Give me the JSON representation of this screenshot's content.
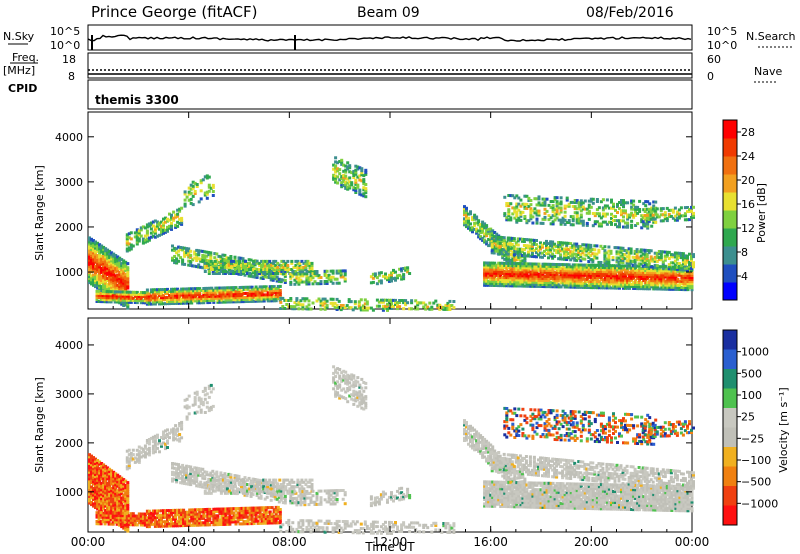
{
  "header": {
    "station": "Prince George (fitACF)",
    "beam": "Beam 09",
    "date": "08/Feb/2016"
  },
  "side_labels": {
    "nsky": "N.Sky",
    "nsearch": "N.Search",
    "freq_top": "Freq.",
    "freq_unit": "[MHz]",
    "cpid": "CPID",
    "nave": "Nave",
    "cpid_value": "themis 3300"
  },
  "small_ticks": {
    "nsky_top": "10^5",
    "nsky_bot": "10^0",
    "nsearch_top": "10^5",
    "nsearch_bot": "10^0",
    "freq_top": "18",
    "freq_bot": "8",
    "nave_top": "60",
    "nave_bot": "0"
  },
  "colors": {
    "power": [
      "#0000ff",
      "#1f4fbf",
      "#3c8f8f",
      "#2fa84f",
      "#7fd03f",
      "#e8e030",
      "#f2a020",
      "#f07010",
      "#f03a00",
      "#ff0000"
    ],
    "velocity": [
      "#1a2fa0",
      "#2a5fd0",
      "#1f8f6f",
      "#4fc24f",
      "#c8c8c0",
      "#c0c0b8",
      "#f0b020",
      "#f08010",
      "#f04010",
      "#ff1010"
    ]
  },
  "chart_data": [
    {
      "type": "heatmap",
      "title": "Power",
      "ylabel": "Slant Range [km]",
      "xlabel": "",
      "x_ticks": [
        "00:00",
        "04:00",
        "08:00",
        "12:00",
        "16:00",
        "20:00",
        "00:00"
      ],
      "y_ticks": [
        "1000",
        "2000",
        "3000",
        "4000"
      ],
      "ylim": [
        180,
        4550
      ],
      "colorbar_label": "Power [dB]",
      "colorbar_ticks": [
        "4",
        "8",
        "12",
        "16",
        "20",
        "24",
        "28"
      ],
      "colorbar_range": [
        0,
        30
      ]
    },
    {
      "type": "heatmap",
      "title": "Velocity",
      "ylabel": "Slant Range [km]",
      "xlabel": "Time UT",
      "x_ticks": [
        "00:00",
        "04:00",
        "08:00",
        "12:00",
        "16:00",
        "20:00",
        "00:00"
      ],
      "y_ticks": [
        "1000",
        "2000",
        "3000",
        "4000"
      ],
      "ylim": [
        180,
        4550
      ],
      "colorbar_label": "Velocity [m s⁻¹]",
      "colorbar_ticks": [
        "1000",
        "500",
        "100",
        "25",
        "−25",
        "−100",
        "−500",
        "−1000"
      ]
    }
  ]
}
